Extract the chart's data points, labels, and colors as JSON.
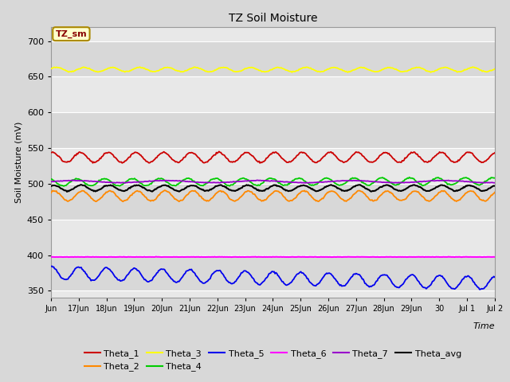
{
  "title": "TZ Soil Moisture",
  "xlabel": "Time",
  "ylabel": "Soil Moisture (mV)",
  "ylim": [
    340,
    720
  ],
  "yticks": [
    350,
    400,
    450,
    500,
    550,
    600,
    650,
    700
  ],
  "fig_bg_color": "#d8d8d8",
  "band_colors": [
    "#e8e8e8",
    "#d8d8d8"
  ],
  "grid_color": "#cccccc",
  "annotation_text": "TZ_sm",
  "annotation_color": "#880000",
  "annotation_bg": "#ffffcc",
  "annotation_border": "#aa8800",
  "series": {
    "Theta_1": {
      "color": "#cc0000"
    },
    "Theta_2": {
      "color": "#ff8800"
    },
    "Theta_3": {
      "color": "#ffff00"
    },
    "Theta_4": {
      "color": "#00cc00"
    },
    "Theta_5": {
      "color": "#0000ee"
    },
    "Theta_6": {
      "color": "#ff00ff"
    },
    "Theta_7": {
      "color": "#9900cc"
    },
    "Theta_avg": {
      "color": "#000000"
    }
  },
  "num_points": 500,
  "xtick_labels": [
    "Jun",
    "17Jun",
    "18Jun",
    "19Jun",
    "20Jun",
    "21Jun",
    "22Jun",
    "23Jun",
    "24Jun",
    "25Jun",
    "26Jun",
    "27Jun",
    "28Jun",
    "29Jun",
    "30",
    "Jul 1",
    "Jul 2"
  ],
  "xtick_positions": [
    0,
    1,
    2,
    3,
    4,
    5,
    6,
    7,
    8,
    9,
    10,
    11,
    12,
    13,
    14,
    15,
    16
  ]
}
